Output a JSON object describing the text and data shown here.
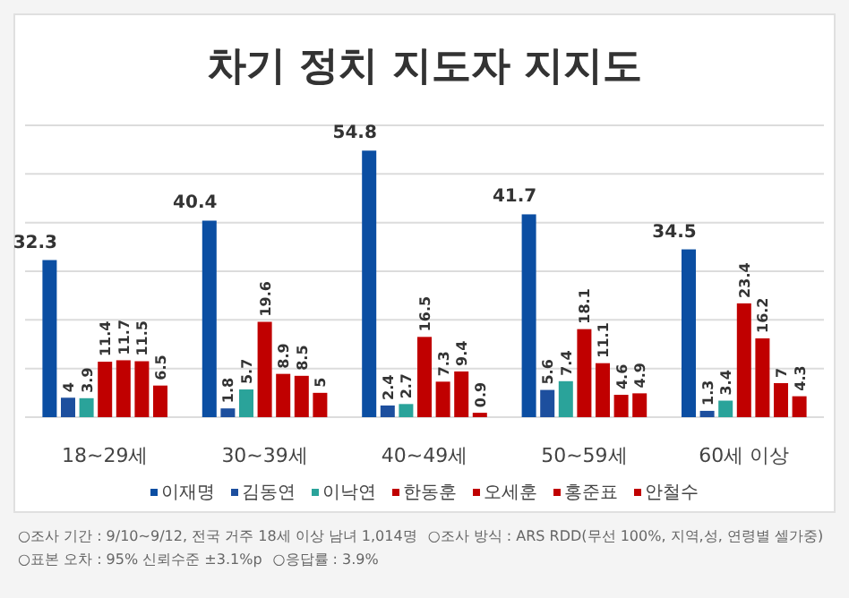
{
  "chart_data": {
    "type": "bar",
    "title": "차기 정치 지도자 지지도",
    "categories": [
      "18~29세",
      "30~39세",
      "40~49세",
      "50~59세",
      "60세 이상"
    ],
    "series": [
      {
        "name": "이재명",
        "color": "#0b4ea2",
        "values": [
          32.3,
          40.4,
          54.8,
          41.7,
          34.5
        ]
      },
      {
        "name": "김동연",
        "color": "#1d4f9e",
        "values": [
          4,
          1.8,
          2.4,
          5.6,
          1.3
        ]
      },
      {
        "name": "이낙연",
        "color": "#2aa39a",
        "values": [
          3.9,
          5.7,
          2.7,
          7.4,
          3.4
        ]
      },
      {
        "name": "한동훈",
        "color": "#c00000",
        "values": [
          11.4,
          19.6,
          16.5,
          18.1,
          23.4
        ]
      },
      {
        "name": "오세훈",
        "color": "#c00000",
        "values": [
          11.7,
          8.9,
          7.3,
          11.1,
          16.2
        ]
      },
      {
        "name": "홍준표",
        "color": "#c00000",
        "values": [
          11.5,
          8.5,
          9.4,
          4.6,
          7
        ]
      },
      {
        "name": "안철수",
        "color": "#c00000",
        "values": [
          6.5,
          5,
          0.9,
          4.9,
          4.3
        ]
      }
    ],
    "ylim": [
      0,
      60
    ],
    "yticks": [
      {
        "value": 0,
        "label": null
      },
      {
        "value": 10,
        "label": null
      },
      {
        "value": 20,
        "label": null
      },
      {
        "value": 30,
        "label": null
      },
      {
        "value": 40,
        "label": null
      },
      {
        "value": 50,
        "label": null
      },
      {
        "value": 60,
        "label": null
      }
    ],
    "grid": "y",
    "data_labels": true,
    "legend": "bottom",
    "annotations": [
      "○조사 기간 : 9/10~9/12, 전국 거주 18세 이상 남녀 1,014명",
      "○조사 방식 : ARS RDD(무선 100%, 지역,성, 연령별 셀가중)",
      "○표본 오차 : 95% 신뢰수준 ±3.1%p",
      "○응답률 : 3.9%"
    ]
  }
}
